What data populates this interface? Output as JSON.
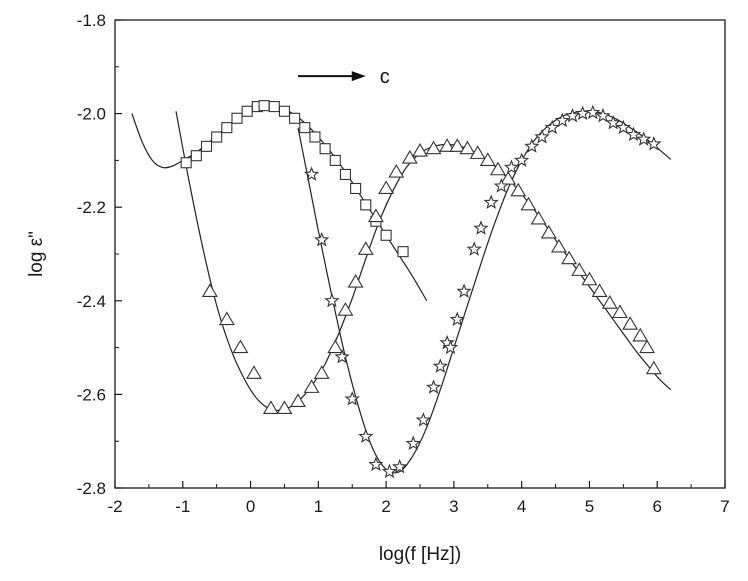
{
  "chart_data": {
    "type": "scatter",
    "title": "",
    "xlabel": "log(f [Hz])",
    "ylabel": "log ε\"",
    "xlim": [
      -2,
      7
    ],
    "ylim": [
      -2.8,
      -1.8
    ],
    "xticks": [
      "-2",
      "-1",
      "0",
      "1",
      "2",
      "3",
      "4",
      "5",
      "6",
      "7"
    ],
    "yticks": [
      "-1.8",
      "-2.0",
      "-2.2",
      "-2.4",
      "-2.6",
      "-2.8"
    ],
    "grid": false,
    "annotation": {
      "text": "c",
      "arrow_from": [
        0.7,
        -1.92
      ],
      "arrow_to": [
        1.7,
        -1.92
      ]
    },
    "series": [
      {
        "marker": "square",
        "points": [
          [
            -0.95,
            -2.105
          ],
          [
            -0.8,
            -2.09
          ],
          [
            -0.65,
            -2.07
          ],
          [
            -0.5,
            -2.05
          ],
          [
            -0.35,
            -2.03
          ],
          [
            -0.2,
            -2.01
          ],
          [
            -0.05,
            -1.995
          ],
          [
            0.1,
            -1.985
          ],
          [
            0.2,
            -1.983
          ],
          [
            0.35,
            -1.985
          ],
          [
            0.5,
            -1.995
          ],
          [
            0.65,
            -2.01
          ],
          [
            0.8,
            -2.03
          ],
          [
            0.95,
            -2.05
          ],
          [
            1.1,
            -2.075
          ],
          [
            1.25,
            -2.1
          ],
          [
            1.4,
            -2.13
          ],
          [
            1.55,
            -2.16
          ],
          [
            1.7,
            -2.195
          ],
          [
            1.85,
            -2.23
          ],
          [
            2.0,
            -2.26
          ],
          [
            2.25,
            -2.295
          ]
        ],
        "fit": [
          [
            -1.75,
            -2.0
          ],
          [
            -1.6,
            -2.06
          ],
          [
            -1.45,
            -2.1
          ],
          [
            -1.3,
            -2.115
          ],
          [
            -1.15,
            -2.112
          ],
          [
            -1.0,
            -2.1
          ],
          [
            -0.8,
            -2.083
          ],
          [
            -0.6,
            -2.06
          ],
          [
            -0.4,
            -2.035
          ],
          [
            -0.2,
            -2.01
          ],
          [
            0.0,
            -1.993
          ],
          [
            0.2,
            -1.985
          ],
          [
            0.4,
            -1.987
          ],
          [
            0.6,
            -1.998
          ],
          [
            0.8,
            -2.02
          ],
          [
            1.0,
            -2.05
          ],
          [
            1.2,
            -2.085
          ],
          [
            1.4,
            -2.125
          ],
          [
            1.6,
            -2.17
          ],
          [
            1.8,
            -2.215
          ],
          [
            2.0,
            -2.26
          ],
          [
            2.2,
            -2.305
          ],
          [
            2.4,
            -2.35
          ],
          [
            2.6,
            -2.4
          ]
        ]
      },
      {
        "marker": "triangle",
        "points": [
          [
            -0.6,
            -2.38
          ],
          [
            -0.35,
            -2.44
          ],
          [
            -0.15,
            -2.5
          ],
          [
            0.05,
            -2.555
          ],
          [
            0.3,
            -2.63
          ],
          [
            0.5,
            -2.63
          ],
          [
            0.7,
            -2.615
          ],
          [
            0.9,
            -2.585
          ],
          [
            1.05,
            -2.555
          ],
          [
            1.25,
            -2.5
          ],
          [
            1.4,
            -2.42
          ],
          [
            1.55,
            -2.36
          ],
          [
            1.7,
            -2.29
          ],
          [
            1.85,
            -2.22
          ],
          [
            2.0,
            -2.16
          ],
          [
            2.15,
            -2.125
          ],
          [
            2.35,
            -2.095
          ],
          [
            2.5,
            -2.08
          ],
          [
            2.7,
            -2.075
          ],
          [
            2.9,
            -2.07
          ],
          [
            3.05,
            -2.07
          ],
          [
            3.2,
            -2.075
          ],
          [
            3.35,
            -2.085
          ],
          [
            3.5,
            -2.1
          ],
          [
            3.65,
            -2.12
          ],
          [
            3.8,
            -2.14
          ],
          [
            3.95,
            -2.165
          ],
          [
            4.1,
            -2.195
          ],
          [
            4.25,
            -2.225
          ],
          [
            4.4,
            -2.255
          ],
          [
            4.55,
            -2.285
          ],
          [
            4.7,
            -2.31
          ],
          [
            4.85,
            -2.335
          ],
          [
            5.0,
            -2.355
          ],
          [
            5.15,
            -2.38
          ],
          [
            5.3,
            -2.405
          ],
          [
            5.45,
            -2.425
          ],
          [
            5.6,
            -2.45
          ],
          [
            5.75,
            -2.475
          ],
          [
            5.85,
            -2.5
          ],
          [
            5.95,
            -2.545
          ]
        ],
        "fit": [
          [
            -1.1,
            -1.995
          ],
          [
            -0.9,
            -2.15
          ],
          [
            -0.7,
            -2.29
          ],
          [
            -0.5,
            -2.41
          ],
          [
            -0.3,
            -2.5
          ],
          [
            -0.1,
            -2.565
          ],
          [
            0.1,
            -2.61
          ],
          [
            0.3,
            -2.632
          ],
          [
            0.5,
            -2.632
          ],
          [
            0.7,
            -2.615
          ],
          [
            0.9,
            -2.582
          ],
          [
            1.1,
            -2.535
          ],
          [
            1.3,
            -2.47
          ],
          [
            1.5,
            -2.395
          ],
          [
            1.7,
            -2.31
          ],
          [
            1.9,
            -2.23
          ],
          [
            2.1,
            -2.165
          ],
          [
            2.3,
            -2.115
          ],
          [
            2.5,
            -2.085
          ],
          [
            2.7,
            -2.07
          ],
          [
            2.9,
            -2.066
          ],
          [
            3.1,
            -2.07
          ],
          [
            3.3,
            -2.082
          ],
          [
            3.5,
            -2.1
          ],
          [
            3.7,
            -2.125
          ],
          [
            3.9,
            -2.155
          ],
          [
            4.1,
            -2.19
          ],
          [
            4.3,
            -2.228
          ],
          [
            4.5,
            -2.27
          ],
          [
            4.7,
            -2.31
          ],
          [
            4.9,
            -2.35
          ],
          [
            5.1,
            -2.39
          ],
          [
            5.3,
            -2.43
          ],
          [
            5.5,
            -2.47
          ],
          [
            5.7,
            -2.51
          ],
          [
            5.9,
            -2.545
          ],
          [
            6.05,
            -2.57
          ],
          [
            6.2,
            -2.59
          ]
        ]
      },
      {
        "marker": "star",
        "points": [
          [
            0.9,
            -2.13
          ],
          [
            1.05,
            -2.27
          ],
          [
            1.2,
            -2.4
          ],
          [
            1.35,
            -2.52
          ],
          [
            1.5,
            -2.61
          ],
          [
            1.7,
            -2.69
          ],
          [
            1.85,
            -2.75
          ],
          [
            2.05,
            -2.765
          ],
          [
            2.2,
            -2.755
          ],
          [
            2.4,
            -2.705
          ],
          [
            2.55,
            -2.655
          ],
          [
            2.7,
            -2.585
          ],
          [
            2.8,
            -2.54
          ],
          [
            2.9,
            -2.49
          ],
          [
            2.95,
            -2.5
          ],
          [
            3.05,
            -2.44
          ],
          [
            3.15,
            -2.38
          ],
          [
            3.3,
            -2.29
          ],
          [
            3.4,
            -2.245
          ],
          [
            3.55,
            -2.19
          ],
          [
            3.7,
            -2.155
          ],
          [
            3.85,
            -2.115
          ],
          [
            4.0,
            -2.1
          ],
          [
            4.15,
            -2.07
          ],
          [
            4.3,
            -2.05
          ],
          [
            4.45,
            -2.03
          ],
          [
            4.6,
            -2.015
          ],
          [
            4.75,
            -2.005
          ],
          [
            4.9,
            -2.0
          ],
          [
            5.05,
            -1.998
          ],
          [
            5.2,
            -2.005
          ],
          [
            5.35,
            -2.02
          ],
          [
            5.5,
            -2.03
          ],
          [
            5.65,
            -2.045
          ],
          [
            5.8,
            -2.055
          ],
          [
            5.95,
            -2.065
          ]
        ],
        "fit": [
          [
            0.7,
            -2.03
          ],
          [
            0.85,
            -2.14
          ],
          [
            1.0,
            -2.25
          ],
          [
            1.2,
            -2.39
          ],
          [
            1.4,
            -2.52
          ],
          [
            1.6,
            -2.63
          ],
          [
            1.8,
            -2.715
          ],
          [
            2.0,
            -2.76
          ],
          [
            2.2,
            -2.765
          ],
          [
            2.4,
            -2.73
          ],
          [
            2.6,
            -2.67
          ],
          [
            2.8,
            -2.59
          ],
          [
            3.0,
            -2.5
          ],
          [
            3.2,
            -2.41
          ],
          [
            3.4,
            -2.32
          ],
          [
            3.6,
            -2.235
          ],
          [
            3.8,
            -2.16
          ],
          [
            4.0,
            -2.1
          ],
          [
            4.2,
            -2.055
          ],
          [
            4.4,
            -2.025
          ],
          [
            4.6,
            -2.006
          ],
          [
            4.8,
            -1.997
          ],
          [
            5.0,
            -1.995
          ],
          [
            5.2,
            -2.0
          ],
          [
            5.4,
            -2.012
          ],
          [
            5.6,
            -2.03
          ],
          [
            5.8,
            -2.05
          ],
          [
            6.0,
            -2.073
          ],
          [
            6.2,
            -2.098
          ]
        ]
      }
    ]
  }
}
